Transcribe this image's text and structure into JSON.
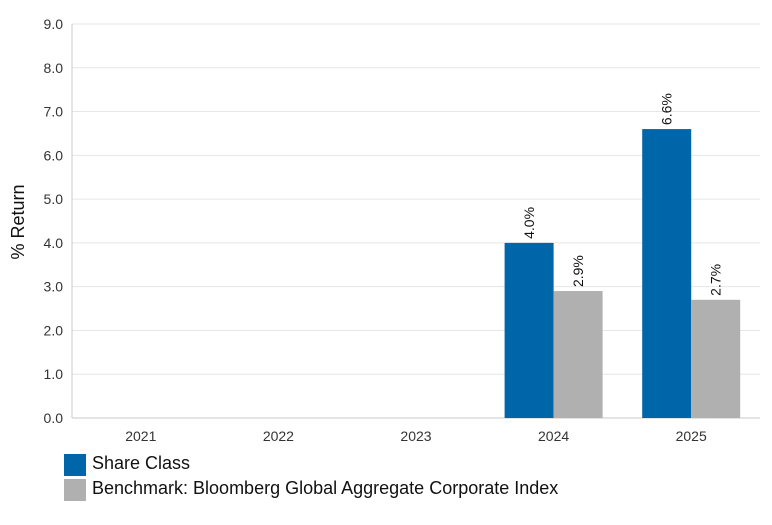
{
  "chart_data": {
    "type": "bar",
    "categories": [
      "2021",
      "2022",
      "2023",
      "2024",
      "2025"
    ],
    "series": [
      {
        "name": "Share Class",
        "values": [
          null,
          null,
          null,
          4.0,
          6.6
        ],
        "labels": [
          "",
          "",
          "",
          "4.0%",
          "6.6%"
        ],
        "color": "#0066aa"
      },
      {
        "name": "Benchmark: Bloomberg Global Aggregate Corporate Index",
        "values": [
          null,
          null,
          null,
          2.9,
          2.7
        ],
        "labels": [
          "",
          "",
          "",
          "2.9%",
          "2.7%"
        ],
        "color": "#b0b0b0"
      }
    ],
    "ylabel": "% Return",
    "ylim": [
      0.0,
      9.0
    ],
    "yticks": [
      "0.0",
      "1.0",
      "2.0",
      "3.0",
      "4.0",
      "5.0",
      "6.0",
      "7.0",
      "8.0",
      "9.0"
    ],
    "grid": true,
    "legend_position": "bottom-left"
  }
}
